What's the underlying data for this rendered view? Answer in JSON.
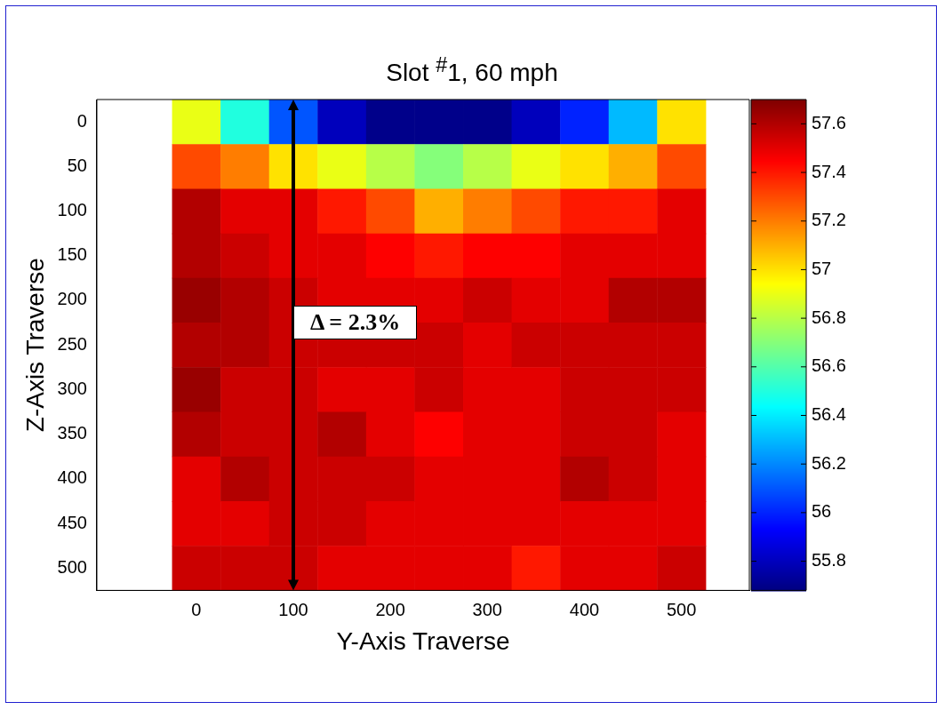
{
  "chart_data": {
    "type": "heatmap",
    "title": "Slot $^{#}$1, 60 mph",
    "xlabel": "Y-Axis Traverse",
    "ylabel": "Z-Axis Traverse",
    "categories": [
      "0",
      null,
      "100",
      null,
      "200",
      null,
      "300",
      null,
      "400",
      null,
      "500"
    ],
    "y_categories": [
      "0",
      "50",
      "100",
      "150",
      "200",
      "250",
      "300",
      "350",
      "400",
      "450",
      "500"
    ],
    "cells": [
      [
        56.9,
        56.5,
        56.1,
        55.8,
        55.7,
        55.7,
        55.7,
        55.8,
        56.0,
        56.3,
        57.0
      ],
      [
        57.3,
        57.2,
        57.0,
        56.9,
        56.8,
        56.7,
        56.8,
        56.9,
        57.0,
        57.1,
        57.3
      ],
      [
        57.6,
        57.5,
        57.5,
        57.4,
        57.3,
        57.1,
        57.2,
        57.3,
        57.4,
        57.4,
        57.5
      ],
      [
        57.6,
        57.55,
        57.5,
        57.5,
        57.45,
        57.4,
        57.45,
        57.45,
        57.5,
        57.5,
        57.5
      ],
      [
        57.65,
        57.6,
        57.55,
        57.5,
        57.5,
        57.5,
        57.55,
        57.5,
        57.5,
        57.6,
        57.6
      ],
      [
        57.6,
        57.6,
        57.55,
        57.55,
        57.55,
        57.55,
        57.5,
        57.55,
        57.55,
        57.55,
        57.55
      ],
      [
        57.65,
        57.55,
        57.55,
        57.5,
        57.5,
        57.55,
        57.5,
        57.5,
        57.55,
        57.55,
        57.55
      ],
      [
        57.6,
        57.55,
        57.55,
        57.6,
        57.5,
        57.45,
        57.5,
        57.5,
        57.55,
        57.55,
        57.5
      ],
      [
        57.5,
        57.6,
        57.55,
        57.55,
        57.55,
        57.5,
        57.5,
        57.5,
        57.6,
        57.55,
        57.5
      ],
      [
        57.5,
        57.5,
        57.55,
        57.55,
        57.5,
        57.5,
        57.5,
        57.5,
        57.5,
        57.5,
        57.5
      ],
      [
        57.55,
        57.55,
        57.55,
        57.5,
        57.5,
        57.5,
        57.5,
        57.4,
        57.5,
        57.5,
        57.55
      ]
    ],
    "clim": [
      55.68,
      57.7
    ],
    "cticks": [
      55.8,
      56,
      56.2,
      56.4,
      56.6,
      56.8,
      57,
      57.2,
      57.4,
      57.6
    ],
    "annotations": [
      "Δ = 2.3%"
    ]
  }
}
